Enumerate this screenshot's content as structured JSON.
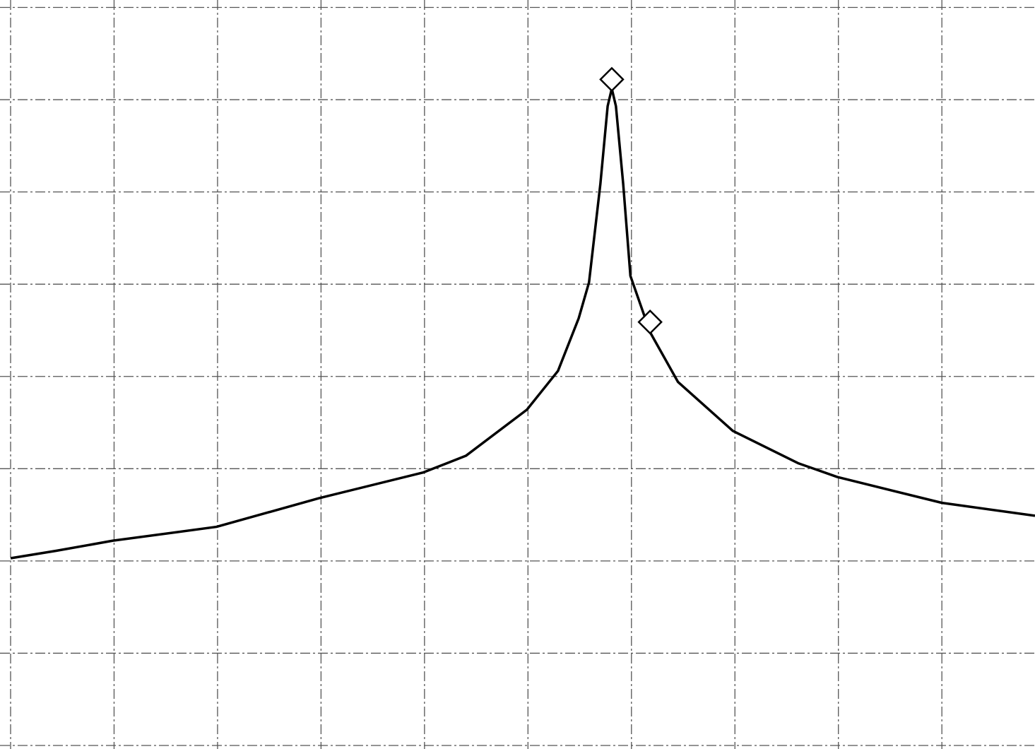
{
  "chart_data": {
    "type": "line",
    "xlim": [
      0,
      9.9
    ],
    "ylim": [
      0,
      8.05
    ],
    "xticks": [
      0,
      1,
      2,
      3,
      4,
      5,
      6,
      7,
      8,
      9
    ],
    "yticks": [
      0,
      1,
      2,
      3,
      4,
      5,
      6,
      7,
      8
    ],
    "grid": true,
    "series": [
      {
        "color": "#000000",
        "style": "line",
        "x": [
          0,
          0.44,
          0.99,
          1.99,
          2.98,
          3.99,
          4.4,
          4.99,
          5.29,
          5.49,
          5.59,
          5.7,
          5.77,
          5.81,
          5.85,
          5.92,
          5.99,
          6.18,
          6.45,
          6.98,
          7.61,
          7.99,
          9.0,
          9.9
        ],
        "values": [
          2.03,
          2.11,
          2.22,
          2.37,
          2.68,
          2.96,
          3.14,
          3.64,
          4.06,
          4.63,
          5.02,
          6.09,
          6.93,
          7.12,
          6.93,
          6.09,
          5.09,
          4.48,
          3.94,
          3.41,
          3.06,
          2.91,
          2.63,
          2.49
        ]
      },
      {
        "color": "#000000",
        "style": "diamond",
        "x": [
          5.81,
          6.18
        ],
        "values": [
          7.22,
          4.59
        ]
      }
    ]
  }
}
